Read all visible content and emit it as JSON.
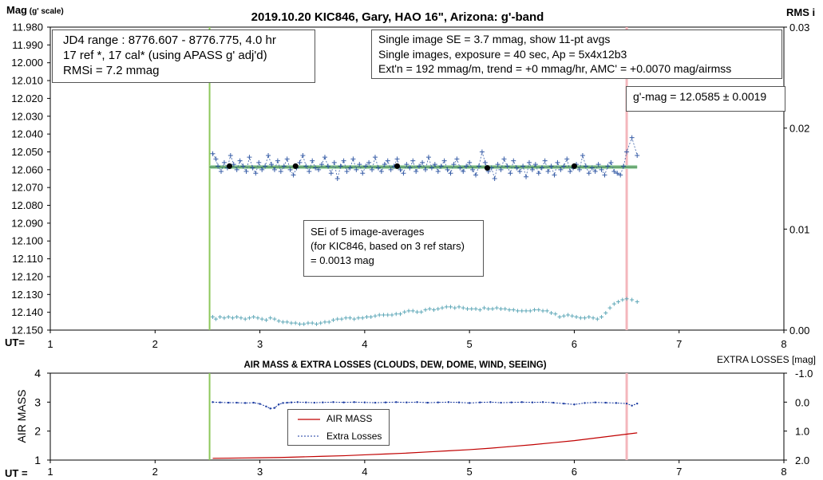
{
  "upper": {
    "title": "2019.10.20 KIC846, Gary, HAO 16\", Arizona: g'-band",
    "y_label_main": "Mag",
    "y_label_sub": " (g' scale)",
    "y2_label": "RMS i",
    "x_label": "UT=",
    "y_ticks": [
      "11.980",
      "11.990",
      "12.000",
      "12.010",
      "12.020",
      "12.030",
      "12.040",
      "12.050",
      "12.060",
      "12.070",
      "12.080",
      "12.090",
      "12.100",
      "12.110",
      "12.120",
      "12.130",
      "12.140",
      "12.150"
    ],
    "y2_ticks": [
      "0.03",
      "0.02",
      "0.01",
      "0.00"
    ],
    "x_ticks": [
      "1",
      "2",
      "3",
      "4",
      "5",
      "6",
      "7",
      "8"
    ]
  },
  "lower": {
    "title": "AIR MASS & EXTRA LOSSES (CLOUDS, DEW, DOME, WIND, SEEING)",
    "y_label": "AIR MASS",
    "y2_label": "EXTRA LOSSES [mag]",
    "x_label": "UT =",
    "y_ticks": [
      "4",
      "3",
      "2",
      "1"
    ],
    "y2_ticks": [
      "-1.0",
      "0.0",
      "1.0",
      "2.0"
    ],
    "x_ticks": [
      "1",
      "2",
      "3",
      "4",
      "5",
      "6",
      "7",
      "8"
    ]
  },
  "annotations": {
    "jd_line1": "JD4 range : 8776.607 - 8776.775,  4.0  hr",
    "jd_line2": "17 ref *, 17 cal* (using APASS g' adj'd)",
    "jd_line3": "RMSi = 7.2 mmag",
    "se_line1": "Single image SE = 3.7 mmag, show  11-pt avgs",
    "se_line2": "Single images, exposure = 40 sec, Ap = 5x4x12b3",
    "se_line3": "Ext'n = 192 mmag/m, trend =  +0 mmag/hr, AMC' = +0.0070 mag/airmss",
    "gmag": "g'-mag = 12.0585 ± 0.0019",
    "sei_line1": "SEi of 5 image-averages",
    "sei_line2": "(for KIC846, based on 3 ref stars)",
    "sei_line3": " = 0.0013 mag"
  },
  "legend": {
    "air_mass": "AIR MASS",
    "extra_losses": "Extra Losses"
  },
  "colors": {
    "mag_series": "#3a5fa8",
    "rms_series": "#5fa8b8",
    "avg_points": "#000000",
    "mean_band": "#9fcfa6",
    "mean_line": "#2e7d3a",
    "start_line": "#8cc85a",
    "end_line": "#f4b6bc",
    "air_mass": "#c00000",
    "extra_losses": "#1a3aa0"
  },
  "chart_data": [
    {
      "type": "scatter",
      "title": "2019.10.20 KIC846, Gary, HAO 16\", Arizona: g'-band",
      "xlabel": "UT=",
      "ylabel": "Mag (g' scale)",
      "y2label": "RMS i",
      "xlim": [
        1,
        8
      ],
      "ylim": [
        12.15,
        11.98
      ],
      "y2lim": [
        0,
        0.03
      ],
      "y_inverted": true,
      "start_ut": 2.52,
      "end_ut": 6.5,
      "mean_mag": 12.0585,
      "series": [
        {
          "name": "single images",
          "x": [
            2.55,
            2.58,
            2.6,
            2.63,
            2.66,
            2.69,
            2.72,
            2.75,
            2.78,
            2.81,
            2.84,
            2.87,
            2.9,
            2.93,
            2.96,
            2.99,
            3.02,
            3.05,
            3.08,
            3.11,
            3.14,
            3.17,
            3.2,
            3.23,
            3.26,
            3.29,
            3.32,
            3.35,
            3.38,
            3.41,
            3.44,
            3.47,
            3.5,
            3.53,
            3.56,
            3.59,
            3.62,
            3.65,
            3.68,
            3.71,
            3.74,
            3.77,
            3.8,
            3.83,
            3.86,
            3.89,
            3.92,
            3.95,
            3.98,
            4.01,
            4.04,
            4.07,
            4.1,
            4.13,
            4.16,
            4.19,
            4.22,
            4.25,
            4.28,
            4.31,
            4.34,
            4.37,
            4.4,
            4.43,
            4.46,
            4.49,
            4.52,
            4.55,
            4.58,
            4.61,
            4.64,
            4.67,
            4.7,
            4.73,
            4.76,
            4.79,
            4.82,
            4.85,
            4.88,
            4.91,
            4.94,
            4.97,
            5.0,
            5.03,
            5.06,
            5.09,
            5.12,
            5.15,
            5.18,
            5.21,
            5.24,
            5.27,
            5.3,
            5.33,
            5.36,
            5.39,
            5.42,
            5.45,
            5.48,
            5.51,
            5.54,
            5.57,
            5.6,
            5.63,
            5.66,
            5.69,
            5.72,
            5.75,
            5.78,
            5.81,
            5.84,
            5.87,
            5.9,
            5.93,
            5.96,
            5.99,
            6.02,
            6.05,
            6.08,
            6.11,
            6.14,
            6.17,
            6.2,
            6.23,
            6.26,
            6.29,
            6.32,
            6.35,
            6.38,
            6.41,
            6.44,
            6.47,
            6.5,
            6.55,
            6.6
          ],
          "values": [
            12.051,
            12.054,
            12.058,
            12.061,
            12.056,
            12.059,
            12.052,
            12.057,
            12.06,
            12.055,
            12.058,
            12.061,
            12.053,
            12.059,
            12.062,
            12.056,
            12.06,
            12.058,
            12.052,
            12.057,
            12.06,
            12.055,
            12.061,
            12.058,
            12.054,
            12.06,
            12.063,
            12.059,
            12.056,
            12.052,
            12.058,
            12.061,
            12.055,
            12.059,
            12.06,
            12.057,
            12.053,
            12.058,
            12.062,
            12.056,
            12.065,
            12.058,
            12.055,
            12.061,
            12.059,
            12.054,
            12.06,
            12.057,
            12.062,
            12.058,
            12.056,
            12.06,
            12.053,
            12.059,
            12.061,
            12.057,
            12.055,
            12.06,
            12.058,
            12.054,
            12.06,
            12.062,
            12.057,
            12.059,
            12.055,
            12.061,
            12.058,
            12.056,
            12.06,
            12.053,
            12.059,
            12.057,
            12.061,
            12.058,
            12.055,
            12.06,
            12.062,
            12.057,
            12.054,
            12.059,
            12.061,
            12.058,
            12.056,
            12.06,
            12.063,
            12.058,
            12.05,
            12.056,
            12.061,
            12.059,
            12.065,
            12.057,
            12.06,
            12.054,
            12.058,
            12.062,
            12.055,
            12.059,
            12.061,
            12.058,
            12.064,
            12.056,
            12.06,
            12.057,
            12.062,
            12.059,
            12.055,
            12.061,
            12.058,
            12.063,
            12.056,
            12.06,
            12.058,
            12.054,
            12.061,
            12.059,
            12.057,
            12.06,
            12.052,
            12.058,
            12.062,
            12.059,
            12.061,
            12.057,
            12.06,
            12.063,
            12.058,
            12.056,
            12.061,
            12.062,
            12.063,
            12.058,
            12.05,
            12.042,
            12.052
          ]
        },
        {
          "name": "11-pt averages",
          "x": [
            2.71,
            3.34,
            4.31,
            5.17,
            6.0
          ],
          "values": [
            12.058,
            12.058,
            12.058,
            12.059,
            12.058
          ]
        },
        {
          "name": "RMS i",
          "axis": "right",
          "x": [
            2.55,
            2.58,
            2.62,
            2.66,
            2.7,
            2.74,
            2.78,
            2.82,
            2.86,
            2.9,
            2.94,
            2.98,
            3.02,
            3.06,
            3.1,
            3.14,
            3.18,
            3.22,
            3.26,
            3.3,
            3.34,
            3.38,
            3.42,
            3.46,
            3.5,
            3.54,
            3.58,
            3.62,
            3.66,
            3.7,
            3.74,
            3.78,
            3.82,
            3.86,
            3.9,
            3.94,
            3.98,
            4.02,
            4.06,
            4.1,
            4.14,
            4.18,
            4.22,
            4.26,
            4.3,
            4.34,
            4.38,
            4.42,
            4.46,
            4.5,
            4.54,
            4.58,
            4.62,
            4.66,
            4.7,
            4.74,
            4.78,
            4.82,
            4.86,
            4.9,
            4.94,
            4.98,
            5.02,
            5.06,
            5.1,
            5.14,
            5.18,
            5.22,
            5.26,
            5.3,
            5.34,
            5.38,
            5.42,
            5.46,
            5.5,
            5.54,
            5.58,
            5.62,
            5.66,
            5.7,
            5.74,
            5.78,
            5.82,
            5.86,
            5.9,
            5.94,
            5.98,
            6.02,
            6.06,
            6.1,
            6.14,
            6.18,
            6.22,
            6.26,
            6.3,
            6.34,
            6.38,
            6.42,
            6.46,
            6.5,
            6.55,
            6.6
          ],
          "values": [
            0.0013,
            0.0011,
            0.0013,
            0.0012,
            0.0013,
            0.0012,
            0.0013,
            0.0012,
            0.0011,
            0.0012,
            0.0013,
            0.0012,
            0.0011,
            0.001,
            0.0012,
            0.0011,
            0.0009,
            0.0008,
            0.0008,
            0.0007,
            0.0007,
            0.0006,
            0.0006,
            0.0007,
            0.0007,
            0.0006,
            0.0007,
            0.0008,
            0.0008,
            0.001,
            0.0011,
            0.0011,
            0.0012,
            0.0012,
            0.0011,
            0.0012,
            0.0012,
            0.0013,
            0.0013,
            0.0014,
            0.0015,
            0.0015,
            0.0015,
            0.0015,
            0.0016,
            0.0016,
            0.0018,
            0.0019,
            0.0019,
            0.0018,
            0.0018,
            0.002,
            0.0021,
            0.002,
            0.0021,
            0.0022,
            0.0023,
            0.0023,
            0.0022,
            0.0023,
            0.0022,
            0.0021,
            0.0021,
            0.0021,
            0.002,
            0.0022,
            0.0021,
            0.0021,
            0.0022,
            0.0021,
            0.0021,
            0.002,
            0.002,
            0.0019,
            0.0019,
            0.0019,
            0.0019,
            0.002,
            0.002,
            0.0019,
            0.0019,
            0.0017,
            0.0016,
            0.0013,
            0.0014,
            0.0015,
            0.0014,
            0.0013,
            0.0012,
            0.0012,
            0.0013,
            0.0012,
            0.0011,
            0.0013,
            0.0017,
            0.0022,
            0.0026,
            0.0028,
            0.003,
            0.0031,
            0.003,
            0.0028
          ]
        }
      ]
    },
    {
      "type": "line",
      "title": "AIR MASS & EXTRA LOSSES (CLOUDS, DEW, DOME, WIND, SEEING)",
      "xlabel": "UT =",
      "ylabel": "AIR MASS",
      "y2label": "EXTRA LOSSES [mag]",
      "xlim": [
        1,
        8
      ],
      "ylim": [
        1,
        4
      ],
      "y2lim": [
        2.0,
        -1.0
      ],
      "series": [
        {
          "name": "AIR MASS",
          "x": [
            2.55,
            2.8,
            3.0,
            3.2,
            3.4,
            3.6,
            3.8,
            4.0,
            4.2,
            4.4,
            4.6,
            4.8,
            5.0,
            5.2,
            5.4,
            5.6,
            5.8,
            6.0,
            6.2,
            6.4,
            6.6
          ],
          "values": [
            1.06,
            1.07,
            1.08,
            1.09,
            1.11,
            1.13,
            1.15,
            1.18,
            1.21,
            1.24,
            1.28,
            1.32,
            1.36,
            1.41,
            1.47,
            1.53,
            1.6,
            1.67,
            1.76,
            1.85,
            1.94
          ]
        },
        {
          "name": "Extra Losses",
          "axis": "right",
          "x": [
            2.55,
            2.62,
            2.7,
            2.78,
            2.86,
            2.94,
            3.0,
            3.06,
            3.1,
            3.14,
            3.18,
            3.22,
            3.26,
            3.3,
            3.36,
            3.44,
            3.52,
            3.6,
            3.7,
            3.8,
            3.9,
            4.0,
            4.1,
            4.2,
            4.3,
            4.4,
            4.5,
            4.6,
            4.7,
            4.8,
            4.9,
            5.0,
            5.1,
            5.2,
            5.3,
            5.4,
            5.5,
            5.6,
            5.7,
            5.8,
            5.9,
            6.0,
            6.1,
            6.2,
            6.3,
            6.4,
            6.5,
            6.55,
            6.6
          ],
          "values": [
            0.0,
            0.01,
            0.02,
            0.02,
            0.03,
            0.02,
            0.06,
            0.15,
            0.22,
            0.2,
            0.08,
            0.03,
            0.02,
            0.01,
            0.0,
            0.01,
            0.02,
            0.01,
            0.0,
            0.01,
            0.0,
            0.01,
            0.02,
            0.01,
            0.0,
            0.01,
            0.0,
            0.02,
            0.01,
            0.0,
            0.01,
            0.03,
            0.01,
            0.0,
            0.02,
            0.01,
            0.0,
            0.01,
            0.0,
            0.02,
            0.05,
            0.08,
            0.03,
            0.01,
            0.02,
            0.03,
            0.05,
            0.12,
            0.05
          ]
        }
      ]
    }
  ]
}
